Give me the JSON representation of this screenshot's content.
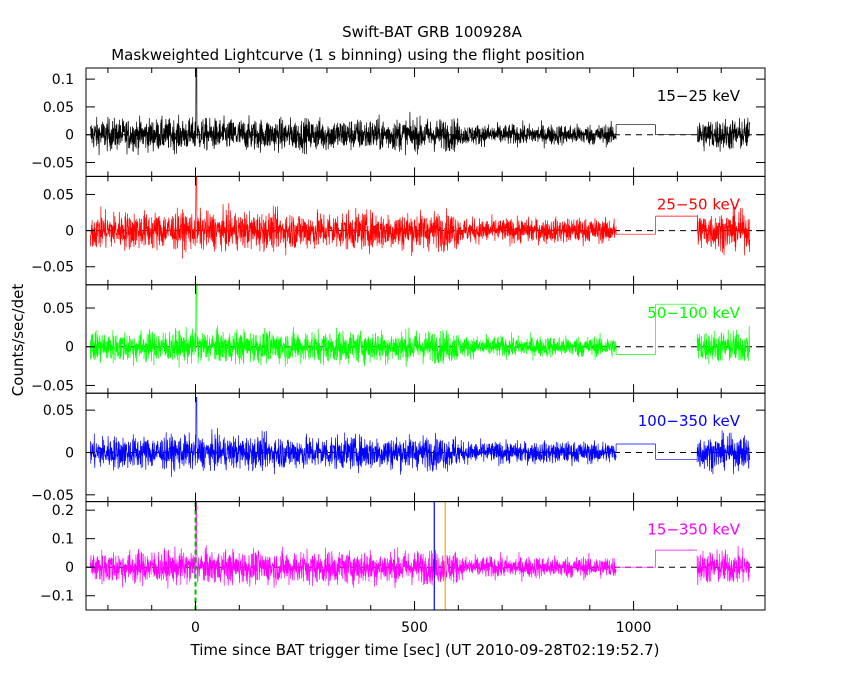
{
  "figure": {
    "title": "Swift-BAT GRB 100928A",
    "subtitle": "Maskweighted Lightcurve (1 s binning) using the flight position",
    "ylabel": "Counts/sec/det",
    "xlabel": "Time since BAT trigger time [sec] (UT 2010-09-28T02:19:52.7)"
  },
  "chart_data": {
    "type": "line",
    "xlim": [
      -250,
      1300
    ],
    "x_ticks": [
      0,
      500,
      1000
    ],
    "x_tick_labels": [
      "0",
      "500",
      "1000"
    ],
    "grid": false,
    "markers": [
      {
        "x": 0,
        "color": "#00c000",
        "style": "dashed",
        "panel": "15-350 keV"
      },
      {
        "x": 545,
        "color": "#0000ff",
        "style": "solid",
        "panel": "15-350 keV"
      },
      {
        "x": 570,
        "color": "#ffa500",
        "style": "solid",
        "panel": "15-350 keV"
      }
    ],
    "panels": [
      {
        "label": "15−25 keV",
        "color": "#000000",
        "ylim": [
          -0.075,
          0.12
        ],
        "yticks": [
          -0.05,
          0,
          0.05,
          0.1
        ],
        "ytick_labels": [
          "−0.05",
          "0",
          "0.05",
          "0.1"
        ],
        "amplitude": 0.022,
        "spike": 0.12,
        "segments": [
          {
            "x": [
              -240,
              960
            ],
            "type": "noisy"
          },
          {
            "x": [
              960,
              1050
            ],
            "type": "step",
            "y": 0.018
          },
          {
            "x": [
              1050,
              1145
            ],
            "type": "step",
            "y": 0.0
          },
          {
            "x": [
              1145,
              1265
            ],
            "type": "noisy"
          }
        ]
      },
      {
        "label": "25−50 keV",
        "color": "#ff0000",
        "ylim": [
          -0.075,
          0.075
        ],
        "yticks": [
          -0.05,
          0,
          0.05
        ],
        "ytick_labels": [
          "−0.05",
          "0",
          "0.05"
        ],
        "amplitude": 0.02,
        "spike": 0.075,
        "segments": [
          {
            "x": [
              -240,
              960
            ],
            "type": "noisy"
          },
          {
            "x": [
              960,
              1050
            ],
            "type": "step",
            "y": -0.005
          },
          {
            "x": [
              1050,
              1145
            ],
            "type": "step",
            "y": 0.02
          },
          {
            "x": [
              1145,
              1265
            ],
            "type": "noisy"
          }
        ]
      },
      {
        "label": "50−100 keV",
        "color": "#00ff00",
        "ylim": [
          -0.06,
          0.08
        ],
        "yticks": [
          -0.05,
          0,
          0.05
        ],
        "ytick_labels": [
          "−0.05",
          "0",
          "0.05"
        ],
        "amplitude": 0.016,
        "spike": 0.08,
        "segments": [
          {
            "x": [
              -240,
              960
            ],
            "type": "noisy"
          },
          {
            "x": [
              960,
              1050
            ],
            "type": "step",
            "y": -0.01
          },
          {
            "x": [
              1050,
              1145
            ],
            "type": "step",
            "y": 0.055
          },
          {
            "x": [
              1145,
              1265
            ],
            "type": "noisy"
          }
        ]
      },
      {
        "label": "100−350 keV",
        "color": "#0000ff",
        "ylim": [
          -0.058,
          0.07
        ],
        "yticks": [
          -0.05,
          0,
          0.05
        ],
        "ytick_labels": [
          "−0.05",
          "0",
          "0.05"
        ],
        "amplitude": 0.015,
        "spike": 0.065,
        "segments": [
          {
            "x": [
              -240,
              960
            ],
            "type": "noisy"
          },
          {
            "x": [
              960,
              1050
            ],
            "type": "step",
            "y": 0.01
          },
          {
            "x": [
              1050,
              1145
            ],
            "type": "step",
            "y": -0.008
          },
          {
            "x": [
              1145,
              1265
            ],
            "type": "noisy"
          }
        ]
      },
      {
        "label": "15−350 keV",
        "color": "#ff00ff",
        "ylim": [
          -0.15,
          0.23
        ],
        "yticks": [
          -0.1,
          0,
          0.1,
          0.2
        ],
        "ytick_labels": [
          "−0.1",
          "0",
          "0.1",
          "0.2"
        ],
        "amplitude": 0.045,
        "spike": 0.23,
        "segments": [
          {
            "x": [
              -240,
              960
            ],
            "type": "noisy"
          },
          {
            "x": [
              960,
              1050
            ],
            "type": "step",
            "y": 0.0
          },
          {
            "x": [
              1050,
              1145
            ],
            "type": "step",
            "y": 0.06
          },
          {
            "x": [
              1145,
              1265
            ],
            "type": "noisy"
          }
        ]
      }
    ]
  }
}
